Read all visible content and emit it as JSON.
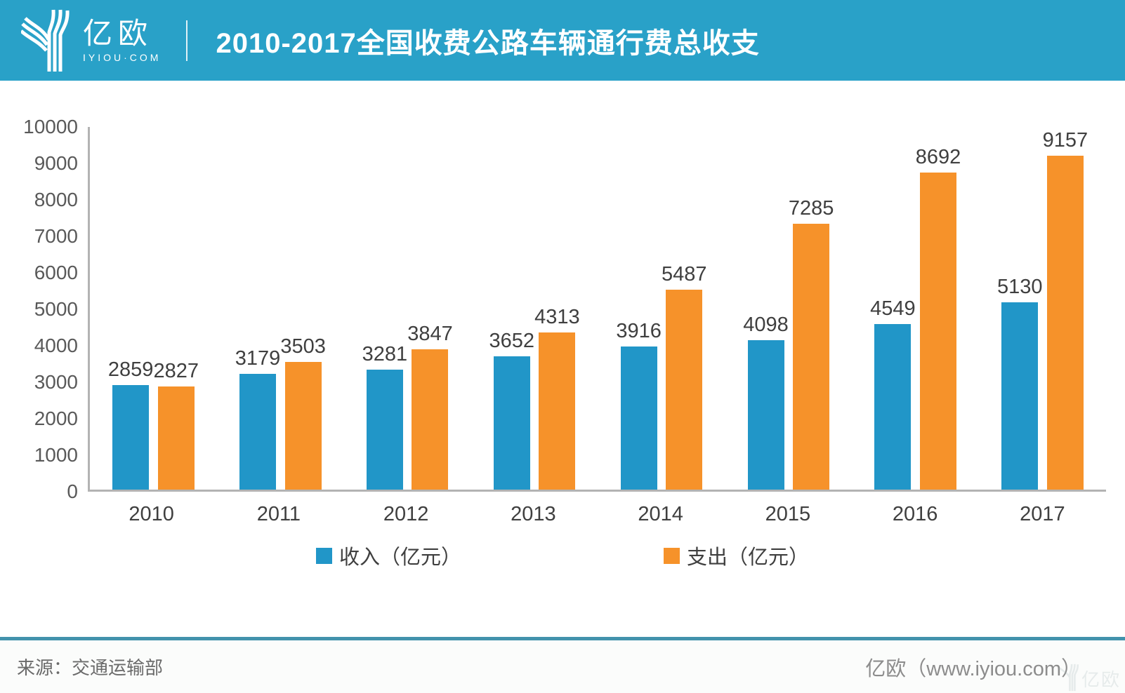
{
  "header": {
    "logo_text": "亿欧",
    "logo_subtext": "IYIOU·COM",
    "title": "2010-2017全国收费公路车辆通行费总收支"
  },
  "chart_data": {
    "type": "bar",
    "title": "2010-2017全国收费公路车辆通行费总收支",
    "categories": [
      "2010",
      "2011",
      "2012",
      "2013",
      "2014",
      "2015",
      "2016",
      "2017"
    ],
    "series": [
      {
        "name": "收入（亿元）",
        "color": "#2196C8",
        "values": [
          2859,
          3179,
          3281,
          3652,
          3916,
          4098,
          4549,
          5130
        ]
      },
      {
        "name": "支出（亿元）",
        "color": "#F6922A",
        "values": [
          2827,
          3503,
          3847,
          4313,
          5487,
          7285,
          8692,
          9157
        ]
      }
    ],
    "xlabel": "",
    "ylabel": "",
    "ylim": [
      0,
      10000
    ],
    "ytick_step": 1000,
    "grid": false,
    "legend_position": "bottom",
    "data_labels": true
  },
  "colors": {
    "header_bg": "#29A1C8",
    "income_bar": "#2196C8",
    "expense_bar": "#F6922A",
    "footer_divider": "#4292AC",
    "axis_line": "#b3b3b3"
  },
  "footer": {
    "source": "来源：交通运输部",
    "site": "亿欧（www.iyiou.com）",
    "watermark": "亿欧"
  }
}
